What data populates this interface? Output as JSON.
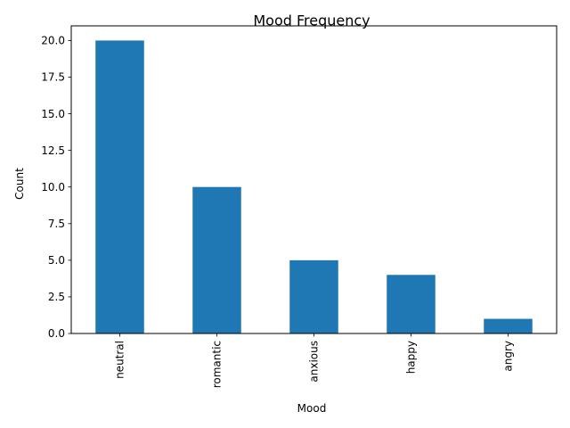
{
  "chart_data": {
    "type": "bar",
    "title": "Mood Frequency",
    "xlabel": "Mood",
    "ylabel": "Count",
    "categories": [
      "neutral",
      "romantic",
      "anxious",
      "happy",
      "angry"
    ],
    "values": [
      20,
      10,
      5,
      4,
      1
    ],
    "ylim": [
      0,
      21
    ],
    "yticks": [
      0.0,
      2.5,
      5.0,
      7.5,
      10.0,
      12.5,
      15.0,
      17.5,
      20.0
    ],
    "ytick_labels": [
      "0.0",
      "2.5",
      "5.0",
      "7.5",
      "10.0",
      "12.5",
      "15.0",
      "17.5",
      "20.0"
    ],
    "bar_color": "#1f77b4",
    "grid": false,
    "legend": "none"
  }
}
